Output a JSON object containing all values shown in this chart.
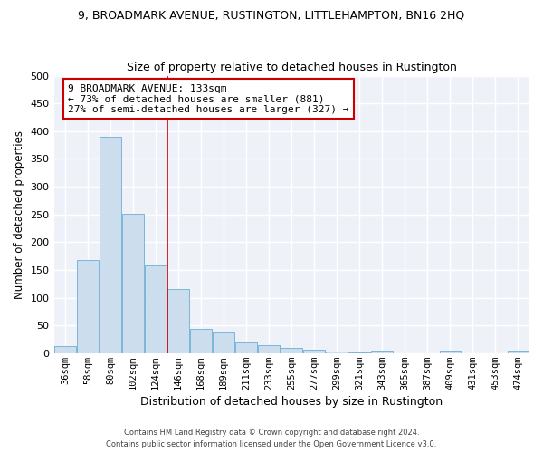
{
  "title": "9, BROADMARK AVENUE, RUSTINGTON, LITTLEHAMPTON, BN16 2HQ",
  "subtitle": "Size of property relative to detached houses in Rustington",
  "xlabel": "Distribution of detached houses by size in Rustington",
  "ylabel": "Number of detached properties",
  "bar_color": "#ccdded",
  "bar_edge_color": "#6aadd5",
  "categories": [
    "36sqm",
    "58sqm",
    "80sqm",
    "102sqm",
    "124sqm",
    "146sqm",
    "168sqm",
    "189sqm",
    "211sqm",
    "233sqm",
    "255sqm",
    "277sqm",
    "299sqm",
    "321sqm",
    "343sqm",
    "365sqm",
    "387sqm",
    "409sqm",
    "431sqm",
    "453sqm",
    "474sqm"
  ],
  "values": [
    13,
    167,
    390,
    251,
    158,
    115,
    44,
    39,
    19,
    14,
    9,
    6,
    3,
    2,
    4,
    0,
    0,
    5,
    0,
    0,
    4
  ],
  "vline_x": 4.5,
  "vline_color": "#cc0000",
  "annotation_title": "9 BROADMARK AVENUE: 133sqm",
  "annotation_line1": "← 73% of detached houses are smaller (881)",
  "annotation_line2": "27% of semi-detached houses are larger (327) →",
  "annotation_box_color": "#cc0000",
  "ylim": [
    0,
    500
  ],
  "yticks": [
    0,
    50,
    100,
    150,
    200,
    250,
    300,
    350,
    400,
    450,
    500
  ],
  "footer1": "Contains HM Land Registry data © Crown copyright and database right 2024.",
  "footer2": "Contains public sector information licensed under the Open Government Licence v3.0.",
  "bg_color": "#eef2f8"
}
